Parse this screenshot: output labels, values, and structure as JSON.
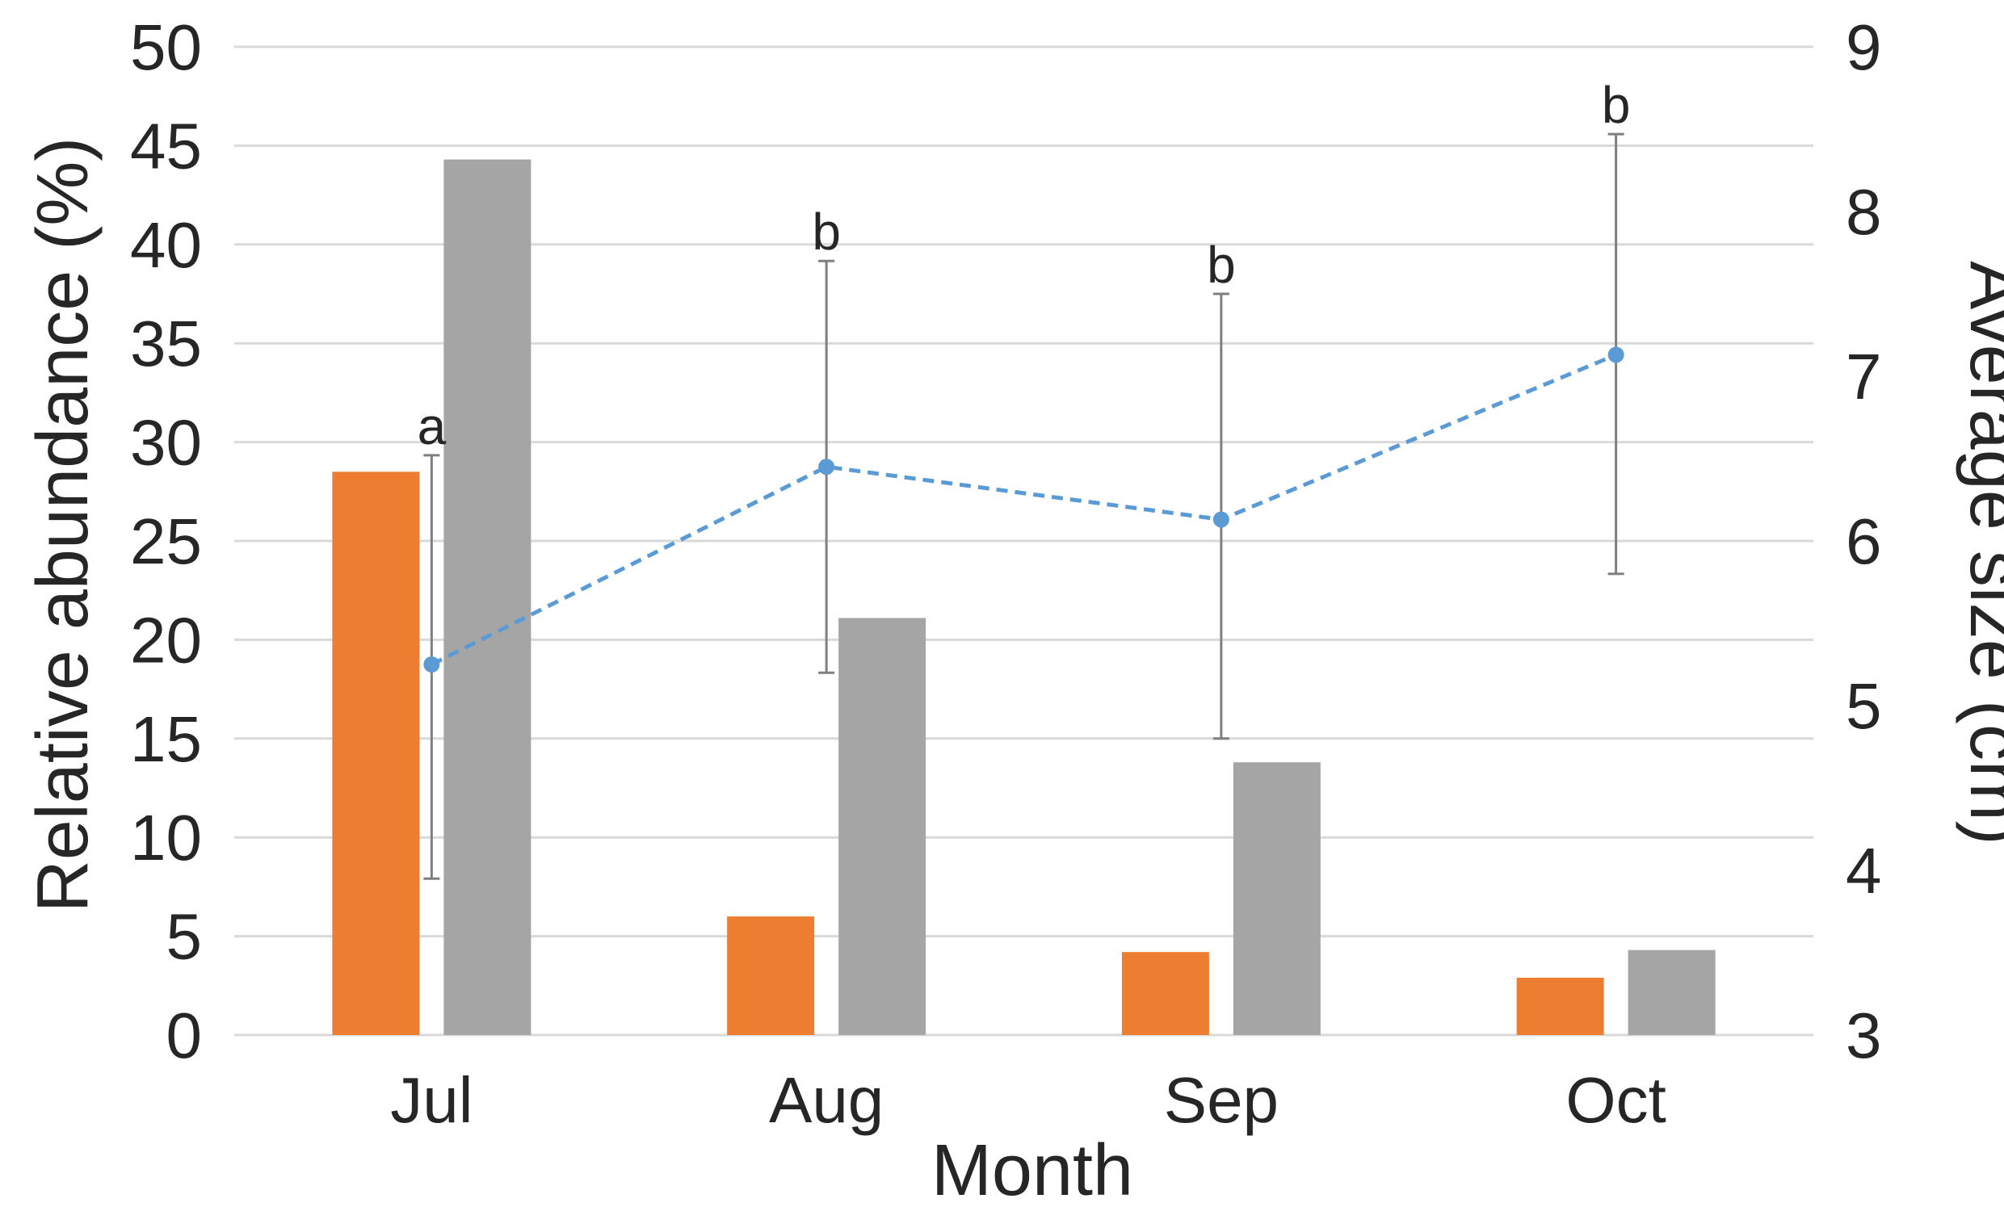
{
  "chart_data": {
    "type": "bar",
    "categories": [
      "Jul",
      "Aug",
      "Sep",
      "Oct"
    ],
    "xlabel": "Month",
    "ylabel": "Relative abundance (%)",
    "y2label": "Average size (cm)",
    "ylim": [
      0,
      50
    ],
    "y2lim": [
      3,
      9
    ],
    "yticks": [
      "0",
      "5",
      "10",
      "15",
      "20",
      "25",
      "30",
      "35",
      "40",
      "45",
      "50"
    ],
    "y2ticks": [
      "3",
      "4",
      "5",
      "6",
      "7",
      "8",
      "9"
    ],
    "grid": true,
    "legend": "none",
    "series": [
      {
        "axis": "left",
        "kind": "bar",
        "color": "#ed7d31",
        "values": [
          28.5,
          6.0,
          4.2,
          2.9
        ]
      },
      {
        "axis": "left",
        "kind": "bar",
        "color": "#a5a5a5",
        "values": [
          44.3,
          21.1,
          13.8,
          4.3
        ]
      },
      {
        "axis": "right",
        "kind": "line",
        "style": "dashed",
        "color": "#5b9bd5",
        "values": [
          5.25,
          6.45,
          6.13,
          7.13
        ],
        "error_low": [
          3.95,
          5.2,
          4.8,
          5.8
        ],
        "error_high": [
          6.52,
          7.7,
          7.5,
          8.47
        ],
        "annotations": [
          "a",
          "b",
          "b",
          "b"
        ]
      }
    ]
  }
}
